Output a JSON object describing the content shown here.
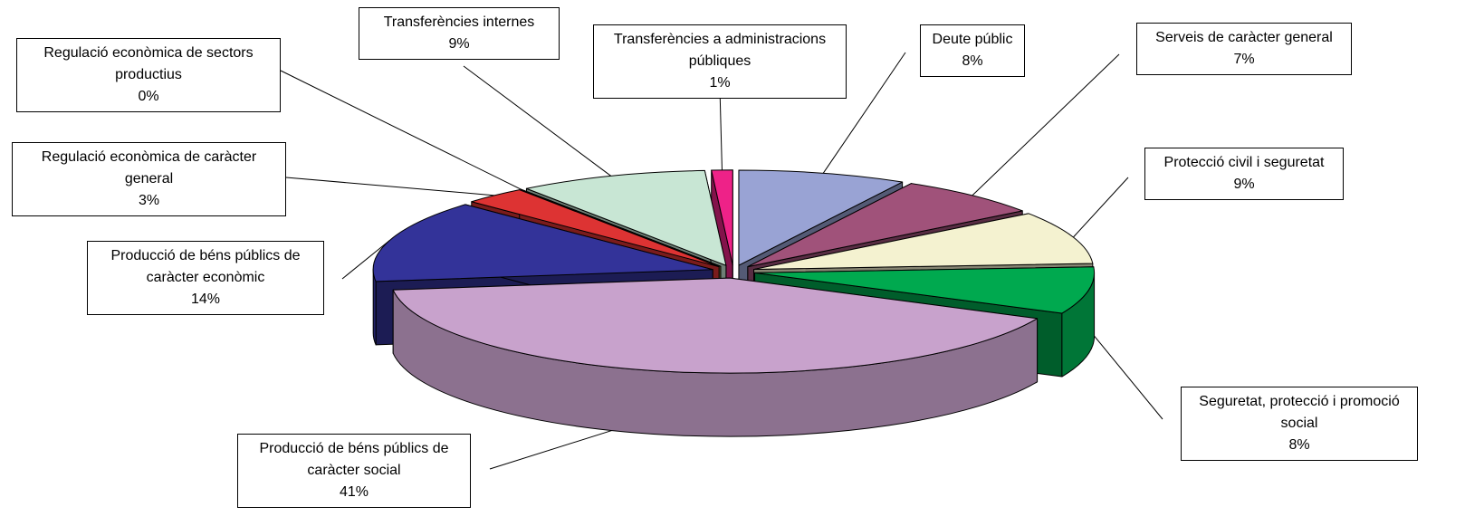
{
  "chart_data": {
    "type": "pie",
    "categories": [
      "Deute públic",
      "Serveis de caràcter general",
      "Protecció civil i seguretat",
      "Seguretat, protecció i promoció social",
      "Producció de béns públics de caràcter social",
      "Producció de béns públics de caràcter econòmic",
      "Regulació econòmica de caràcter general",
      "Regulació econòmica de sectors productius",
      "Transferències internes",
      "Transferències a administracions públiques"
    ],
    "values": [
      8,
      7,
      9,
      8,
      41,
      14,
      3,
      0,
      9,
      1
    ],
    "value_labels": [
      "8%",
      "7%",
      "9%",
      "8%",
      "41%",
      "14%",
      "3%",
      "0%",
      "9%",
      "1%"
    ],
    "colors": [
      "#99a3d4",
      "#a0527a",
      "#f4f2d0",
      "#00a94f",
      "#c8a2cc",
      "#333399",
      "#dd3333",
      "#d4c35a",
      "#c8e6d4",
      "#ee2288"
    ]
  }
}
